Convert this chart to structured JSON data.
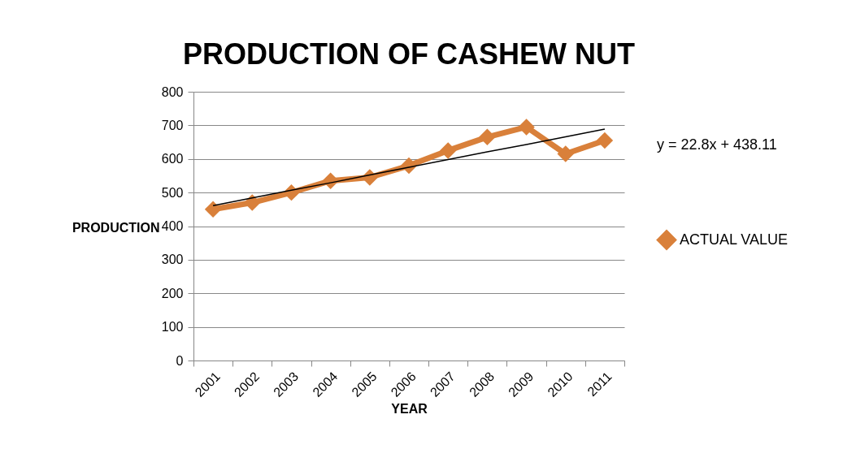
{
  "chart_data": {
    "type": "line",
    "title": "PRODUCTION OF CASHEW NUT",
    "xlabel": "YEAR",
    "ylabel": "PRODUCTION",
    "categories": [
      "2001",
      "2002",
      "2003",
      "2004",
      "2005",
      "2006",
      "2007",
      "2008",
      "2009",
      "2010",
      "2011"
    ],
    "series": [
      {
        "name": "ACTUAL VALUE",
        "color": "#d9803a",
        "values": [
          450,
          470,
          500,
          535,
          545,
          580,
          625,
          665,
          695,
          615,
          655
        ]
      },
      {
        "type": "line",
        "color": "#000000",
        "values": [
          461,
          484,
          507,
          529,
          552,
          575,
          598,
          621,
          643,
          666,
          689
        ],
        "marker": "none"
      }
    ],
    "annotations": [
      "y = 22.8x + 438.11"
    ],
    "ylim": [
      0,
      800
    ],
    "yticks": [
      0,
      100,
      200,
      300,
      400,
      500,
      600,
      700,
      800
    ],
    "grid": "y",
    "legend": "right",
    "marker": "diamond",
    "line_style": "solid"
  }
}
